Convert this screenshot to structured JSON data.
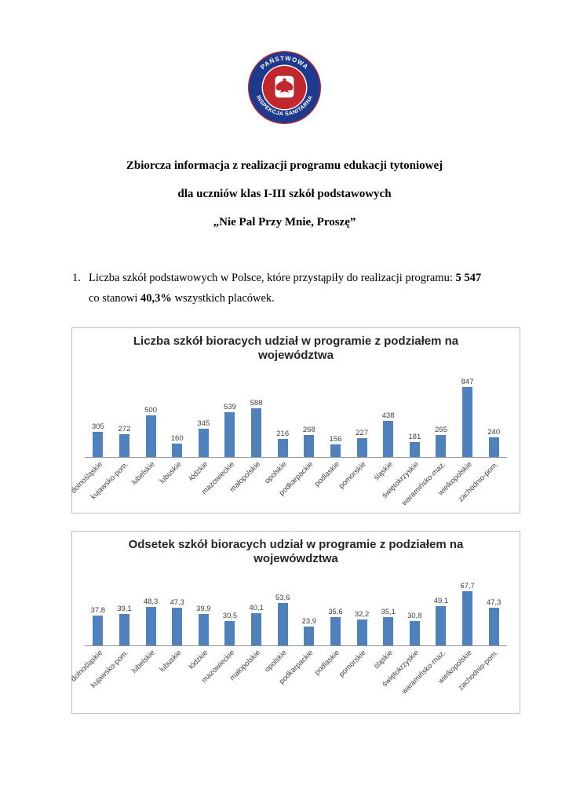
{
  "logo": {
    "text_top": "PAŃSTWOWA",
    "text_bottom": "INSPEKCJA SANITARNA",
    "ring_color": "#1e3a8c",
    "center_color": "#c1272d"
  },
  "document": {
    "title_lines": [
      "Zbiorcza informacja z realizacji programu edukacji tytoniowej",
      "dla uczniów klas I-III szkół podstawowych",
      "„Nie Pal Przy Mnie, Proszę”"
    ],
    "item_number": "1.",
    "paragraph": {
      "part1": "Liczba szkół podstawowych w Polsce, które przystąpiły do realizacji programu: ",
      "bold1": "5 547",
      "part2": "co stanowi ",
      "bold2": "40,3%",
      "part3": " wszystkich placówek."
    }
  },
  "chart_data": [
    {
      "type": "bar",
      "title": "Liczba szkół bioracych udział w programie z podziałem na województwa",
      "categories": [
        "dolnośląskie",
        "kujawsko-pom.",
        "lubelskie",
        "lubuskie",
        "łódzkie",
        "mazowieckie",
        "małopolskie",
        "opolskie",
        "podkarpackie",
        "podlaskie",
        "pomorskie",
        "śląskie",
        "świętokrzyskie",
        "waramińsko-maz.",
        "wielkopolskie",
        "zachodnio-pom."
      ],
      "values": [
        305,
        272,
        500,
        160,
        345,
        539,
        588,
        216,
        268,
        156,
        227,
        438,
        181,
        265,
        847,
        240
      ],
      "values_display": [
        "305",
        "272",
        "500",
        "160",
        "345",
        "539",
        "588",
        "216",
        "268",
        "156",
        "227",
        "438",
        "181",
        "265",
        "847",
        "240"
      ],
      "bar_color": "#4f81bd",
      "ylim": [
        0,
        900
      ],
      "grid": false,
      "legend": false
    },
    {
      "type": "bar",
      "title": "Odsetek szkół bioracych udział w programie z podziałem na wojewówdztwa",
      "categories": [
        "dolnośląskie",
        "kujawsko-pom.",
        "lubelskie",
        "lubuskie",
        "łódzkie",
        "mazowieckie",
        "małopolskie",
        "opolskie",
        "podkarpackie",
        "podlaskie",
        "pomorskie",
        "śląskie",
        "świętokrzyskie",
        "waramińsko-maz.",
        "wielkopolskie",
        "zachodnio-pom."
      ],
      "values": [
        37.8,
        39.1,
        48.3,
        47.3,
        39.9,
        30.5,
        40.1,
        53.6,
        23.9,
        35.6,
        32.2,
        35.1,
        30.8,
        49.1,
        67.7,
        47.3
      ],
      "values_display": [
        "37,8",
        "39,1",
        "48,3",
        "47,3",
        "39,9",
        "30,5",
        "40,1",
        "53,6",
        "23,9",
        "35,6",
        "32,2",
        "35,1",
        "30,8",
        "49,1",
        "67,7",
        "47,3"
      ],
      "bar_color": "#4f81bd",
      "ylim": [
        0,
        75
      ],
      "grid": false,
      "legend": false
    }
  ]
}
